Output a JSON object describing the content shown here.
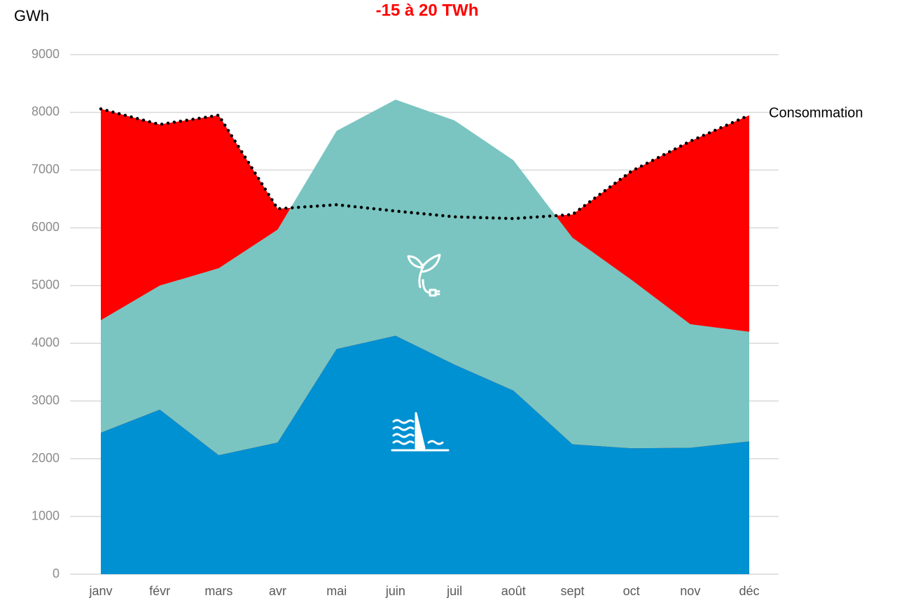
{
  "chart_data": {
    "type": "stacked_area",
    "title": "-15 à 20 TWh",
    "y_label": "GWh",
    "categories": [
      "janv",
      "févr",
      "mars",
      "avr",
      "mai",
      "juin",
      "juil",
      "août",
      "sept",
      "oct",
      "nov",
      "déc"
    ],
    "series": [
      {
        "color": "#0091d2",
        "values": [
          2450,
          2850,
          2060,
          2280,
          3900,
          4130,
          3630,
          3180,
          2250,
          2180,
          2190,
          2300
        ]
      },
      {
        "color": "#7ac5c1",
        "values": [
          1950,
          2150,
          3240,
          3690,
          3780,
          4090,
          4230,
          3990,
          3580,
          2920,
          2140,
          1900
        ]
      }
    ],
    "line": {
      "name": "Consommation",
      "color": "#000000",
      "fill": "#ff0000",
      "values": [
        8060,
        7790,
        7950,
        6330,
        6400,
        6290,
        6190,
        6160,
        6230,
        6980,
        7500,
        7950
      ]
    },
    "ylim": [
      0,
      9000
    ],
    "yticks": [
      0,
      1000,
      2000,
      3000,
      4000,
      5000,
      6000,
      7000,
      8000,
      9000
    ],
    "grid": true
  }
}
